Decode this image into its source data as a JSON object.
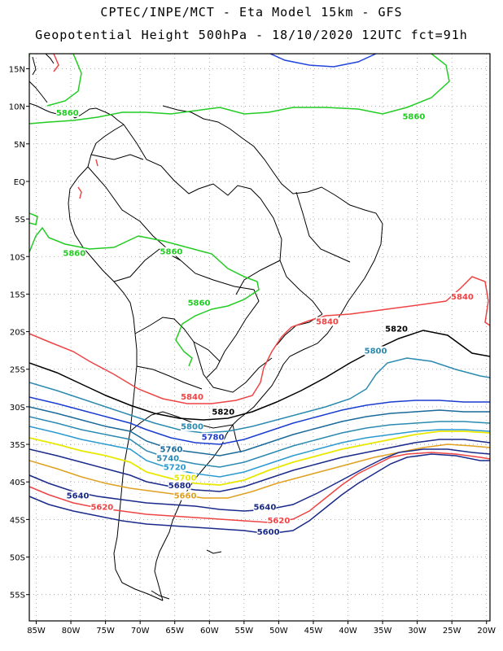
{
  "header": {
    "line1": "CPTEC/INPE/MCT -  Eta Model 15km - GFS",
    "line2": "Geopotential Height 500hPa - 18/10/2020 12UTC fct=91h"
  },
  "axes": {
    "lat_labels": [
      "15N",
      "10N",
      "5N",
      "EQ",
      "5S",
      "10S",
      "15S",
      "20S",
      "25S",
      "30S",
      "35S",
      "40S",
      "45S",
      "50S",
      "55S"
    ],
    "lat_values": [
      15,
      10,
      5,
      0,
      -5,
      -10,
      -15,
      -20,
      -25,
      -30,
      -35,
      -40,
      -45,
      -50,
      -55
    ],
    "lon_labels": [
      "85W",
      "80W",
      "75W",
      "70W",
      "65W",
      "60W",
      "55W",
      "50W",
      "45W",
      "40W",
      "35W",
      "30W",
      "25W",
      "20W"
    ],
    "lon_values": [
      -85,
      -80,
      -75,
      -70,
      -65,
      -60,
      -55,
      -50,
      -45,
      -40,
      -35,
      -30,
      -25,
      -20
    ],
    "lon_range": [
      -86,
      -19.5
    ],
    "lat_range": [
      -58.5,
      17
    ]
  },
  "contour_labels": [
    {
      "text": "5860",
      "lon": -80.5,
      "lat": 9,
      "color": "#22cc22"
    },
    {
      "text": "5860",
      "lon": -30.5,
      "lat": 8.5,
      "color": "#22cc22"
    },
    {
      "text": "5860",
      "lon": -79.5,
      "lat": -9.7,
      "color": "#22cc22"
    },
    {
      "text": "5860",
      "lon": -65.5,
      "lat": -9.5,
      "color": "#22cc22"
    },
    {
      "text": "5860",
      "lon": -61.5,
      "lat": -16.3,
      "color": "#22cc22"
    },
    {
      "text": "5840",
      "lon": -43,
      "lat": -18.8,
      "color": "#ee4444"
    },
    {
      "text": "5840",
      "lon": -23.5,
      "lat": -15.5,
      "color": "#ee4444"
    },
    {
      "text": "5840",
      "lon": -62.5,
      "lat": -28.8,
      "color": "#ee4444"
    },
    {
      "text": "5820",
      "lon": -33,
      "lat": -19.8,
      "color": "#000000"
    },
    {
      "text": "5820",
      "lon": -58,
      "lat": -30.8,
      "color": "#000000"
    },
    {
      "text": "5800",
      "lon": -36,
      "lat": -22.7,
      "color": "#2a8ab0"
    },
    {
      "text": "5800",
      "lon": -62.5,
      "lat": -32.8,
      "color": "#2a8ab0"
    },
    {
      "text": "5780",
      "lon": -59.5,
      "lat": -34.2,
      "color": "#1a3cd0"
    },
    {
      "text": "5760",
      "lon": -65.5,
      "lat": -35.8,
      "color": "#1a6a9a"
    },
    {
      "text": "5740",
      "lon": -66,
      "lat": -37,
      "color": "#2a8ab0"
    },
    {
      "text": "5720",
      "lon": -65,
      "lat": -38.2,
      "color": "#2a9ad0"
    },
    {
      "text": "5700",
      "lon": -63.5,
      "lat": -39.6,
      "color": "#e8e800"
    },
    {
      "text": "5680",
      "lon": -64.3,
      "lat": -40.6,
      "color": "#1a2a8a"
    },
    {
      "text": "5660",
      "lon": -63.5,
      "lat": -42,
      "color": "#e0a020"
    },
    {
      "text": "5640",
      "lon": -79,
      "lat": -42,
      "color": "#1a2a8a"
    },
    {
      "text": "5640",
      "lon": -52,
      "lat": -43.5,
      "color": "#1a2a8a"
    },
    {
      "text": "5620",
      "lon": -75.5,
      "lat": -43.5,
      "color": "#ee4444"
    },
    {
      "text": "5620",
      "lon": -50,
      "lat": -45.3,
      "color": "#ee4444"
    },
    {
      "text": "5600",
      "lon": -51.5,
      "lat": -46.8,
      "color": "#1a2a8a"
    }
  ],
  "colors": {
    "h5860": "#22cc22",
    "h5840": "#ee4444",
    "h5820": "#000000",
    "h5800": "#2a8ab0",
    "h5780": "#1a3cd0",
    "h5760": "#1a6a9a",
    "h5740": "#2a8ab0",
    "h5720": "#2a9ad0",
    "h5700": "#e8e800",
    "h5680": "#1a2a8a",
    "h5660": "#e0a020",
    "h5640": "#1a2a8a",
    "h5620": "#ee4444",
    "h5600": "#1a2a8a",
    "top_contour": "#2244dd"
  }
}
